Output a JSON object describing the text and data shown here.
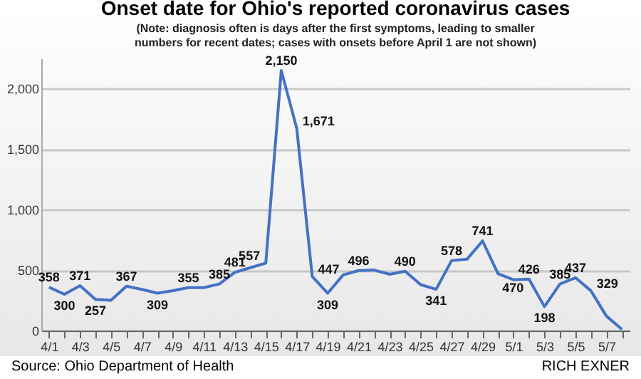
{
  "chart_data": {
    "type": "line",
    "title": "Onset date for Ohio's reported coronavirus cases",
    "subtitle": "(Note: diagnosis often is days after the first symptoms, leading to smaller numbers for recent dates; cases with onsets before April 1  are not shown)",
    "categories": [
      "4/1",
      null,
      "4/3",
      null,
      "4/5",
      null,
      "4/7",
      null,
      "4/9",
      null,
      "4/11",
      null,
      "4/13",
      null,
      "4/15",
      null,
      "4/17",
      null,
      "4/19",
      null,
      "4/21",
      null,
      "4/23",
      null,
      "4/25",
      null,
      "4/27",
      null,
      "4/29",
      null,
      "5/1",
      null,
      "5/3",
      null,
      "5/5",
      null,
      "5/7",
      null
    ],
    "series": [
      {
        "color": "#4472c4",
        "values": [
          358,
          300,
          371,
          257,
          250,
          367,
          340,
          309,
          330,
          355,
          355,
          385,
          481,
          520,
          557,
          2150,
          1671,
          447,
          309,
          460,
          496,
          500,
          465,
          490,
          380,
          341,
          578,
          590,
          741,
          470,
          420,
          426,
          198,
          385,
          437,
          329,
          120,
          10
        ],
        "value_labels": [
          "358",
          "300",
          "371",
          "257",
          null,
          "367",
          null,
          "309",
          null,
          "355",
          null,
          "385",
          "481",
          null,
          "557",
          "2,150",
          "1,671",
          "447",
          "309",
          null,
          "496",
          null,
          null,
          "490",
          null,
          "341",
          "578",
          null,
          "741",
          "470",
          null,
          "426",
          "198",
          "385",
          "437",
          "329",
          null,
          null
        ]
      }
    ],
    "ylim": [
      0,
      2250
    ],
    "yticks": [
      0,
      500,
      {
        "value": 1000,
        "label": "1,000"
      },
      {
        "value": 1500,
        "label": "1,500"
      },
      {
        "value": 2000,
        "label": "2,000"
      }
    ],
    "grid": "y",
    "marker": "none",
    "annotations": [
      "Source: Ohio Department of Health",
      "RICH EXNER"
    ]
  }
}
